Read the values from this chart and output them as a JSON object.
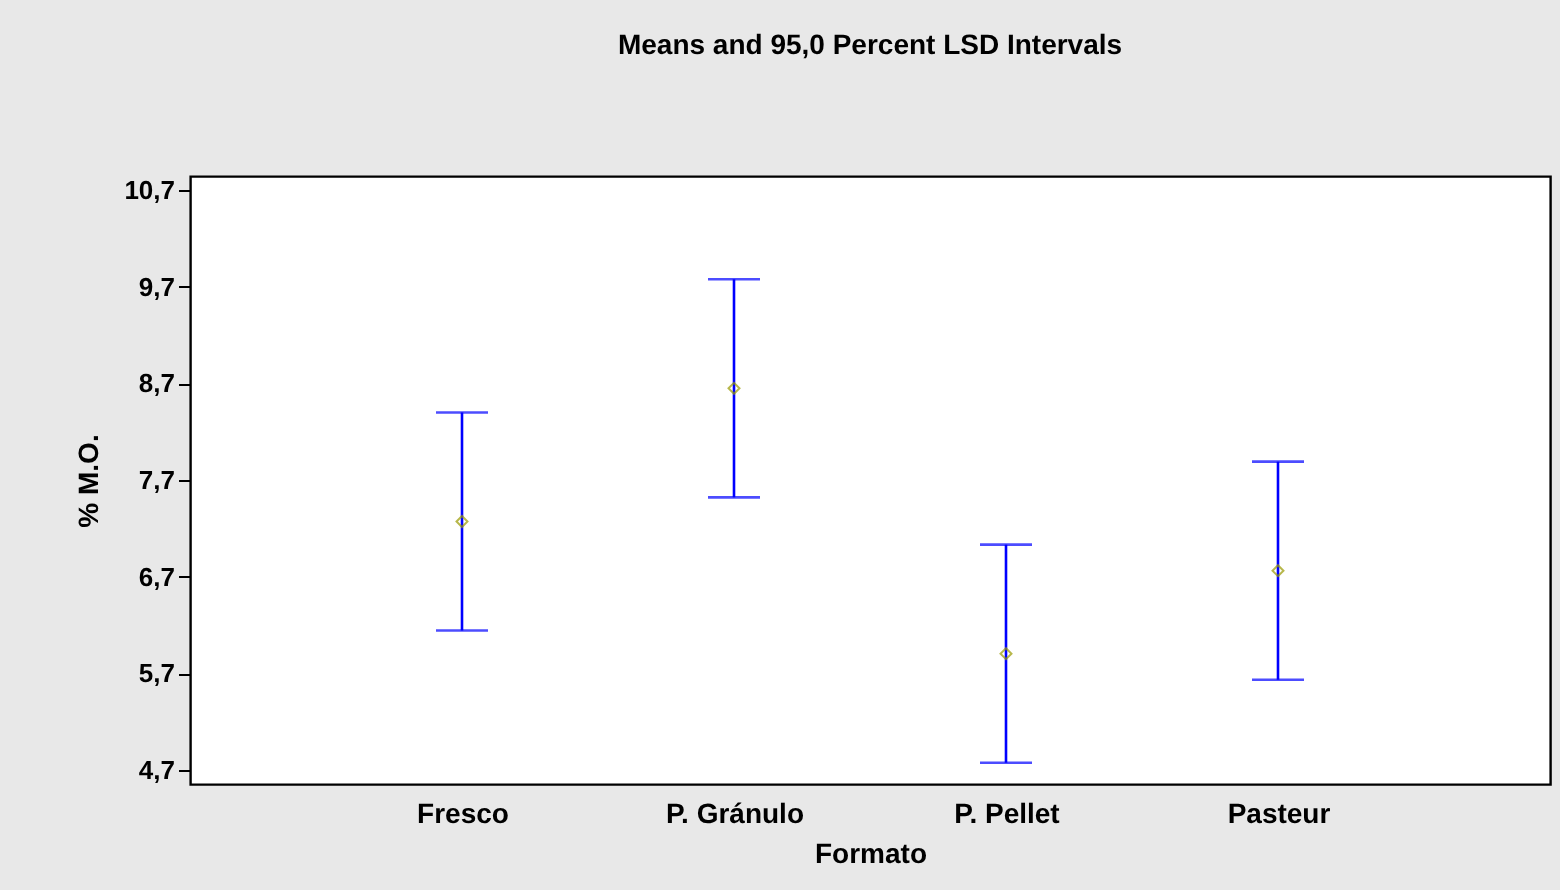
{
  "chart_data": {
    "type": "scatter",
    "title": "Means and 95,0 Percent LSD Intervals",
    "xlabel": "Formato",
    "ylabel": "% M.O.",
    "categories": [
      "Fresco",
      "P. Gránulo",
      "P. Pellet",
      "Pasteur"
    ],
    "series": [
      {
        "color": "#0000ff",
        "colors": [
          "#9a9a00",
          "#9a9a00",
          "#9a9a00",
          "#9a9a00"
        ],
        "values": [
          7.27,
          8.65,
          5.9,
          6.76
        ],
        "errors": [
          1.13,
          1.13,
          1.13,
          1.13
        ]
      }
    ],
    "ylim": [
      4.55,
      10.85
    ],
    "yticks": [
      {
        "value": 4.7,
        "label": "4,7"
      },
      {
        "value": 5.7,
        "label": "5,7"
      },
      {
        "value": 6.7,
        "label": "6,7"
      },
      {
        "value": 7.7,
        "label": "7,7"
      },
      {
        "value": 8.7,
        "label": "8,7"
      },
      {
        "value": 9.7,
        "label": "9,7"
      },
      {
        "value": 10.7,
        "label": "10,7"
      }
    ],
    "marker": "diamond",
    "grid": false
  }
}
